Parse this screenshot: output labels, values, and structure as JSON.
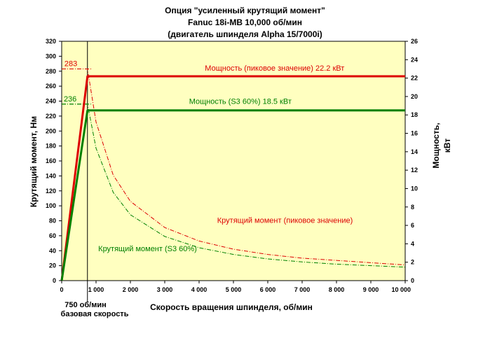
{
  "chart_data": {
    "type": "line",
    "title_lines": [
      "Опция \"усиленный крутящий момент\"",
      "Fanuc 18i-MB 10,000 об/мин",
      "(двигатель шпинделя Alpha 15/7000i)"
    ],
    "xlabel": "Скорость вращения шпинделя, об/мин",
    "ylabel_left": "Крутящий момент, Нм",
    "ylabel_right_lines": [
      "Мощность,",
      "кВт"
    ],
    "xlim": [
      0,
      10000
    ],
    "ylim_left": [
      0,
      320
    ],
    "ylim_right": [
      0,
      26
    ],
    "x_ticks": [
      0,
      1000,
      2000,
      3000,
      4000,
      5000,
      6000,
      7000,
      8000,
      9000,
      10000
    ],
    "x_tick_labels": [
      "0",
      "1 000",
      "2 000",
      "3 000",
      "4 000",
      "5 000",
      "6 000",
      "7 000",
      "8 000",
      "9 000",
      "10 000"
    ],
    "y_left_ticks": [
      0,
      20,
      40,
      60,
      80,
      100,
      120,
      140,
      160,
      180,
      200,
      220,
      240,
      260,
      280,
      300,
      320
    ],
    "y_right_ticks": [
      0,
      2,
      4,
      6,
      8,
      10,
      12,
      14,
      16,
      18,
      20,
      22,
      24,
      26
    ],
    "grid": false,
    "plot_background": "#ffffc0",
    "base_speed": 750,
    "base_speed_label": "750 об/мин",
    "base_speed_caption": "базовая скорость",
    "series": [
      {
        "name": "Мощность (пиковое значение) 22.2 кВт",
        "axis": "right",
        "style": "solid",
        "color": "#dd0000",
        "x": [
          0,
          750,
          10000
        ],
        "y": [
          0,
          22.2,
          22.2
        ]
      },
      {
        "name": "Мощность (S3 60%) 18.5 кВт",
        "axis": "right",
        "style": "solid",
        "color": "#008000",
        "x": [
          0,
          750,
          10000
        ],
        "y": [
          0,
          18.5,
          18.5
        ]
      },
      {
        "name": "Крутящий момент (пиковое значение)",
        "axis": "left",
        "style": "dash-dot",
        "color": "#dd0000",
        "x": [
          0,
          750,
          1000,
          1500,
          2000,
          3000,
          4000,
          5000,
          6000,
          7000,
          8000,
          9000,
          10000
        ],
        "y": [
          283,
          283,
          212,
          141,
          106,
          71,
          53,
          42,
          35,
          30,
          27,
          24,
          21
        ]
      },
      {
        "name": "Крутящий момент (S3 60%)",
        "axis": "left",
        "style": "dash-dot",
        "color": "#008000",
        "x": [
          0,
          750,
          1000,
          1500,
          2000,
          3000,
          4000,
          5000,
          6000,
          7000,
          8000,
          9000,
          10000
        ],
        "y": [
          236,
          236,
          177,
          118,
          88,
          59,
          44,
          35,
          29,
          25,
          22,
          20,
          18
        ]
      }
    ],
    "annotations": [
      {
        "text": "283",
        "color": "#dd0000"
      },
      {
        "text": "236",
        "color": "#008000"
      }
    ]
  }
}
